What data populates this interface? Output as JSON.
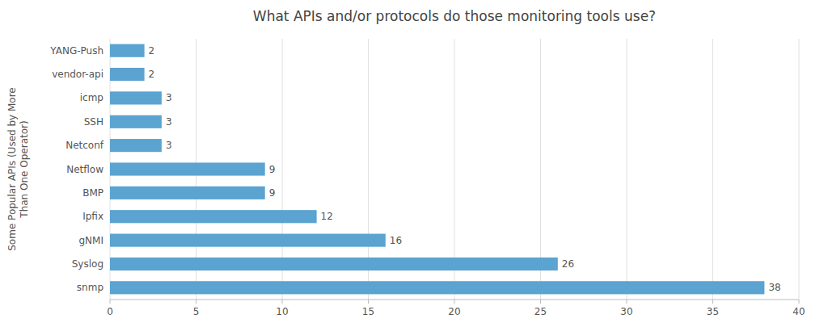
{
  "chart_data": {
    "type": "bar",
    "orientation": "horizontal",
    "title": "What APIs and/or protocols do those monitoring tools use?",
    "ylabel": "Some Popular APIs (Used by More\nThan One Operator)",
    "categories": [
      "snmp",
      "Syslog",
      "gNMI",
      "Ipfix",
      "BMP",
      "Netflow",
      "Netconf",
      "SSH",
      "icmp",
      "vendor-api",
      "YANG-Push"
    ],
    "values": [
      38,
      26,
      16,
      12,
      9,
      9,
      3,
      3,
      3,
      2,
      2
    ],
    "color": "#5BA3D0",
    "xlim": [
      0,
      40
    ],
    "xticks": [
      0,
      5,
      10,
      15,
      20,
      25,
      30,
      35,
      40
    ],
    "grid": true,
    "data_labels": true
  }
}
